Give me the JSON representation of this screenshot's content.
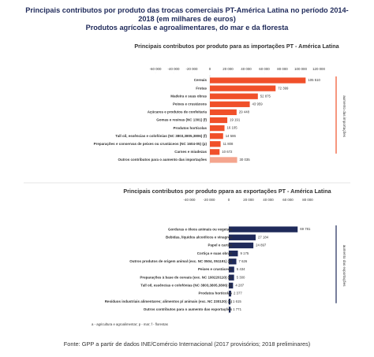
{
  "header": {
    "title": "Principais contributos por produto das trocas comerciais PT-América Latina no período 2014-2018 (em milhares de euros)",
    "subtitle": "Produtos agrícolas e agroalimentares, do mar e da floresta"
  },
  "chart_data": [
    {
      "type": "bar",
      "orientation": "horizontal",
      "title": "Principais contributos por produto para as importações PT - América Latina",
      "categories": [
        "Cereais",
        "Frutas",
        "Madeira e suas obras",
        "Peixes e crustáceos",
        "Açúcares e produtos de confeitaria",
        "Gomas e resinas (NC 1301) (f)",
        "Produtos hortícolas",
        "Tall oil, essências e colofónias (NC 3803,3805,3806) (f)",
        "Preparações e conservas de peixes ou crustáceos (NC 1604-05) (p)",
        "Carnes e miudezas",
        "Outros contributos para o aumento das importações"
      ],
      "values": [
        105510,
        72399,
        52875,
        43959,
        29448,
        19191,
        16105,
        14586,
        11808,
        10672,
        30035
      ],
      "value_labels": [
        "105 510",
        "72 399",
        "52 875",
        "43 959",
        "29 448",
        "19 191",
        "16 105",
        "14 586",
        "11 808",
        "10 672",
        "30 035"
      ],
      "colors": [
        "#f0502a",
        "#f0502a",
        "#f0502a",
        "#f0502a",
        "#f0502a",
        "#f0502a",
        "#f0502a",
        "#f0502a",
        "#f0502a",
        "#f0502a",
        "#f4a58e"
      ],
      "xlim": [
        -60000,
        120000
      ],
      "xticks": [
        {
          "value": -60000,
          "label": "-60 000"
        },
        {
          "value": -40000,
          "label": "-40 000"
        },
        {
          "value": -20000,
          "label": "-20 000"
        },
        0,
        {
          "value": 20000,
          "label": "20 000"
        },
        {
          "value": 40000,
          "label": "40 000"
        },
        {
          "value": 60000,
          "label": "60 000"
        },
        {
          "value": 80000,
          "label": "80 000"
        },
        {
          "value": 100000,
          "label": "100 000"
        },
        {
          "value": 120000,
          "label": "120 000"
        }
      ],
      "annotation": "aumento das importações",
      "annotation_color": "#f0502a"
    },
    {
      "type": "bar",
      "orientation": "horizontal",
      "title": "Principais contributos por produto ppara as exportações PT - América Latina",
      "categories": [
        "Gorduras e óleos animais ou vegetais",
        "Bebidas, líquidos alcoólicos e vinagres",
        "Papel e cartão",
        "Cortiça e suas obras",
        "Outros produtos de origem animal (exc. NC 0504, 051191) (a)",
        "Peixes e crustáceos",
        "Preparações à base de cereais (exc. NC 190220110) (a)",
        "Tall oil, essências e colofónias (NC 3803,3805,3806) (f)",
        "Produtos hortícolas",
        "Resíduos industriais alimentares; alimentos p/ animais (exc. NC 230120) (a)",
        "Outros contributos para o aumento das exportações"
      ],
      "values": [
        69781,
        27184,
        24897,
        9175,
        7626,
        5434,
        5300,
        4287,
        2377,
        1615,
        1771
      ],
      "value_labels": [
        "69 781",
        "27 184",
        "24 897",
        "9 175",
        "7 626",
        "5 434",
        "5 300",
        "4 287",
        "2 377",
        "1 615",
        "1 771"
      ],
      "colors": [
        "#1f2a5a",
        "#1f2a5a",
        "#1f2a5a",
        "#1f2a5a",
        "#1f2a5a",
        "#1f2a5a",
        "#1f2a5a",
        "#1f2a5a",
        "#1f2a5a",
        "#1f2a5a",
        "#1f2a5a"
      ],
      "xlim": [
        -40000,
        80000
      ],
      "xticks": [
        {
          "value": -40000,
          "label": "-40 000"
        },
        {
          "value": -20000,
          "label": "-20 000"
        },
        0,
        {
          "value": 20000,
          "label": "20 000"
        },
        {
          "value": 40000,
          "label": "40 000"
        },
        {
          "value": 60000,
          "label": "60 000"
        },
        {
          "value": 80000,
          "label": "80 000"
        }
      ],
      "annotation": "aumento das exportações",
      "annotation_color": "#1f2a5a"
    }
  ],
  "footnote": "a - agricultura e agroalimentar; p - mar; f - florestas",
  "source": "Fonte: GPP a partir de dados INE/Comércio Internacional (2017 provisórios; 2018 preliminares)"
}
